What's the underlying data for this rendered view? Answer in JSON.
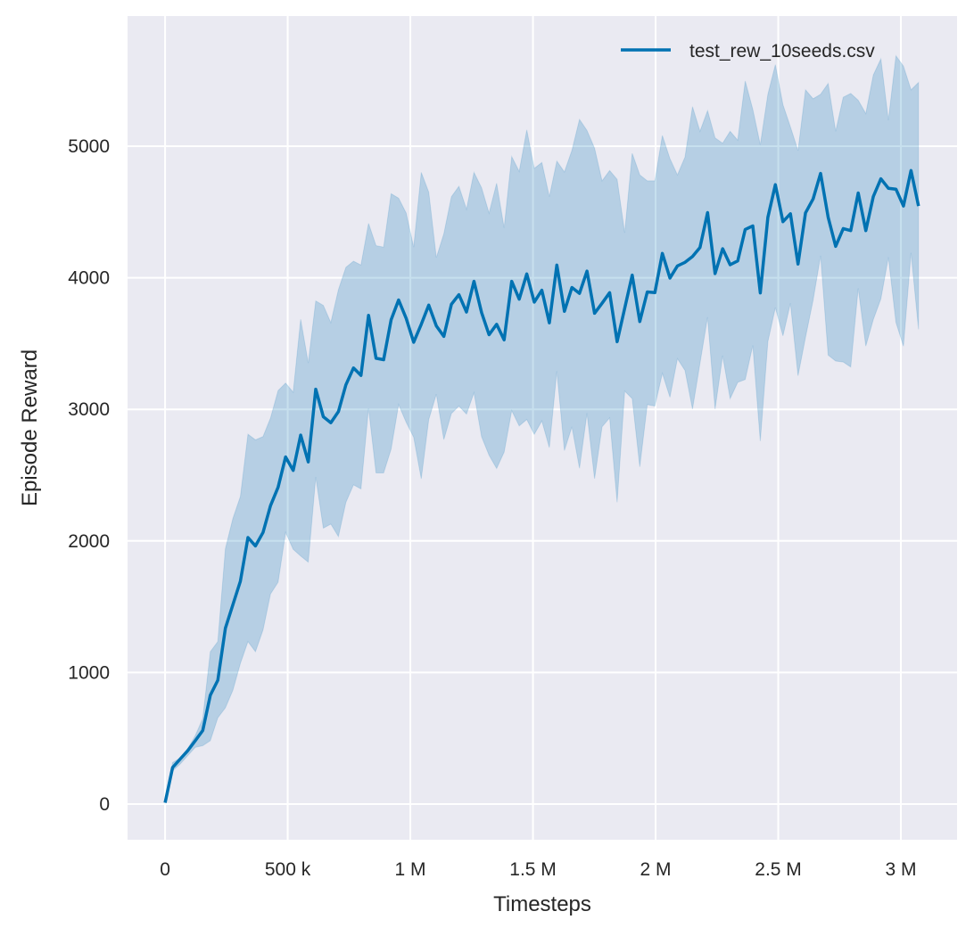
{
  "chart_data": {
    "type": "line",
    "title": "",
    "xlabel": "Timesteps",
    "ylabel": "Episode Reward",
    "xlim": [
      -153000,
      3229000
    ],
    "ylim": [
      -271,
      5989
    ],
    "grid": true,
    "legend_position": "top-right",
    "background_color": "#eaeaf2",
    "grid_color": "#ffffff",
    "x_ticks": [
      0,
      500000,
      1000000,
      1500000,
      2000000,
      2500000,
      3000000
    ],
    "x_tick_labels": [
      "0",
      "500 k",
      "1 M",
      "1.5 M",
      "2 M",
      "2.5 M",
      "3 M"
    ],
    "y_ticks": [
      0,
      1000,
      2000,
      3000,
      4000,
      5000
    ],
    "y_tick_labels": [
      "0",
      "1000",
      "2000",
      "3000",
      "4000",
      "5000"
    ],
    "x_step": 30720,
    "series": [
      {
        "name": "test_rew_10seeds.csv",
        "color": "#0072b2",
        "band_alpha": 0.22,
        "mean": [
          10,
          278,
          342,
          405,
          482,
          559,
          827,
          941,
          1337,
          1515,
          1694,
          2026,
          1962,
          2064,
          2268,
          2408,
          2638,
          2536,
          2804,
          2600,
          3153,
          2944,
          2898,
          2982,
          3186,
          3314,
          3258,
          3715,
          3388,
          3377,
          3680,
          3831,
          3691,
          3510,
          3646,
          3792,
          3634,
          3555,
          3799,
          3871,
          3740,
          3973,
          3736,
          3567,
          3646,
          3528,
          3973,
          3837,
          4029,
          3815,
          3905,
          3657,
          4096,
          3745,
          3926,
          3881,
          4050,
          3730,
          3806,
          3887,
          3514,
          3768,
          4020,
          3667,
          3892,
          3887,
          4185,
          3998,
          4090,
          4117,
          4162,
          4230,
          4495,
          4032,
          4221,
          4099,
          4128,
          4367,
          4394,
          3885,
          4459,
          4707,
          4426,
          4486,
          4104,
          4493,
          4599,
          4793,
          4459,
          4239,
          4374,
          4358,
          4644,
          4358,
          4617,
          4752,
          4680,
          4673,
          4545,
          4815,
          4545
        ],
        "upper": [
          10,
          316,
          350,
          420,
          520,
          650,
          1158,
          1235,
          1941,
          2171,
          2337,
          2811,
          2768,
          2793,
          2934,
          3143,
          3199,
          3130,
          3684,
          3352,
          3824,
          3790,
          3659,
          3909,
          4079,
          4126,
          4097,
          4413,
          4244,
          4233,
          4639,
          4605,
          4492,
          4233,
          4801,
          4650,
          4153,
          4334,
          4616,
          4695,
          4521,
          4801,
          4684,
          4492,
          4718,
          4379,
          4921,
          4808,
          5124,
          4831,
          4876,
          4616,
          4887,
          4804,
          4968,
          5203,
          5119,
          4984,
          4736,
          4815,
          4748,
          4342,
          4946,
          4782,
          4736,
          4736,
          5081,
          4905,
          4782,
          4917,
          5300,
          5113,
          5270,
          5063,
          5023,
          5113,
          5045,
          5495,
          5280,
          5011,
          5394,
          5619,
          5315,
          5146,
          4966,
          5428,
          5360,
          5394,
          5477,
          5113,
          5372,
          5401,
          5349,
          5248,
          5541,
          5664,
          5198,
          5687,
          5608,
          5428,
          5484
        ],
        "lower": [
          10,
          253,
          304,
          367,
          431,
          444,
          482,
          656,
          732,
          865,
          1069,
          1235,
          1158,
          1324,
          1597,
          1686,
          2064,
          1936,
          1885,
          1839,
          2485,
          2097,
          2128,
          2033,
          2293,
          2426,
          2395,
          3008,
          2517,
          2517,
          2698,
          3036,
          2901,
          2788,
          2472,
          2923,
          3115,
          2770,
          2968,
          3025,
          2964,
          3126,
          2792,
          2652,
          2551,
          2675,
          2991,
          2874,
          2923,
          2810,
          2912,
          2709,
          3290,
          2687,
          2867,
          2552,
          2970,
          2473,
          2867,
          2935,
          2293,
          3138,
          3081,
          2563,
          3036,
          3025,
          3273,
          3092,
          3385,
          3295,
          3002,
          3351,
          3700,
          3002,
          3408,
          3081,
          3205,
          3227,
          3486,
          2759,
          3514,
          3773,
          3559,
          3806,
          3255,
          3547,
          3829,
          4167,
          3412,
          3367,
          3360,
          3322,
          3919,
          3480,
          3682,
          3840,
          4155,
          3660,
          3480,
          4189,
          3608
        ]
      }
    ]
  }
}
